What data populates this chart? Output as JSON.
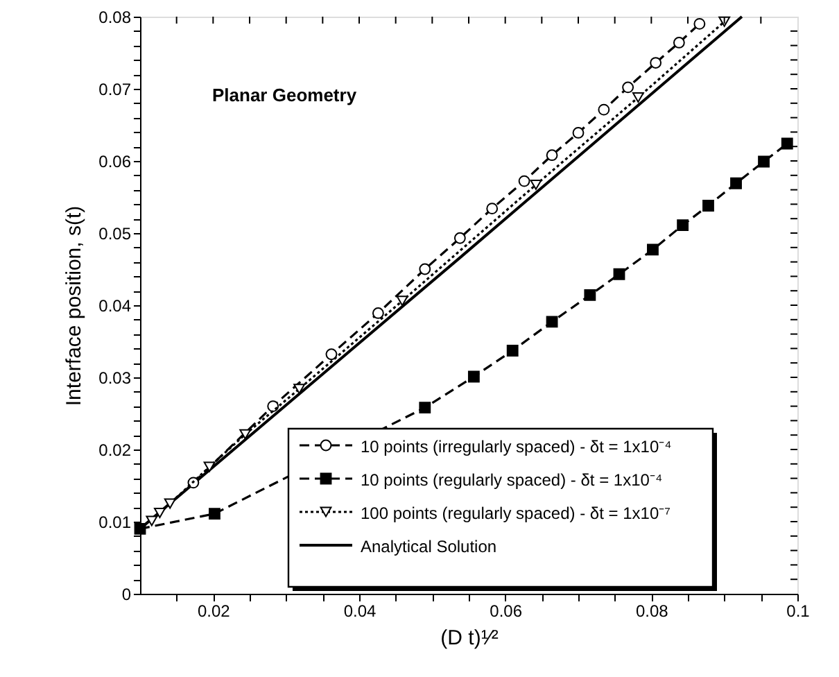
{
  "chart_data": {
    "type": "line",
    "xlabel": "(D t)¹⁄²",
    "ylabel": "Interface position,  s(t)",
    "annotations": [
      "Planar Geometry"
    ],
    "xlim": [
      0.01,
      0.1
    ],
    "ylim": [
      0,
      0.08
    ],
    "xticks": [
      {
        "value": 0.015,
        "label": null
      },
      0.02,
      {
        "value": 0.025,
        "label": null
      },
      {
        "value": 0.03,
        "label": null
      },
      {
        "value": 0.035,
        "label": null
      },
      0.04,
      {
        "value": 0.045,
        "label": null
      },
      {
        "value": 0.05,
        "label": null
      },
      {
        "value": 0.055,
        "label": null
      },
      0.06,
      {
        "value": 0.065,
        "label": null
      },
      {
        "value": 0.07,
        "label": null
      },
      {
        "value": 0.075,
        "label": null
      },
      0.08,
      {
        "value": 0.085,
        "label": null
      },
      {
        "value": 0.09,
        "label": null
      },
      {
        "value": 0.095,
        "label": null
      },
      0.1
    ],
    "yticks": [
      0,
      {
        "value": 0.002,
        "label": null
      },
      {
        "value": 0.004,
        "label": null
      },
      {
        "value": 0.006,
        "label": null
      },
      {
        "value": 0.008,
        "label": null
      },
      0.01,
      {
        "value": 0.012,
        "label": null
      },
      {
        "value": 0.014,
        "label": null
      },
      {
        "value": 0.016,
        "label": null
      },
      {
        "value": 0.018,
        "label": null
      },
      0.02,
      {
        "value": 0.022,
        "label": null
      },
      {
        "value": 0.024,
        "label": null
      },
      {
        "value": 0.026,
        "label": null
      },
      {
        "value": 0.028,
        "label": null
      },
      0.03,
      {
        "value": 0.032,
        "label": null
      },
      {
        "value": 0.034,
        "label": null
      },
      {
        "value": 0.036,
        "label": null
      },
      {
        "value": 0.038,
        "label": null
      },
      0.04,
      {
        "value": 0.042,
        "label": null
      },
      {
        "value": 0.044,
        "label": null
      },
      {
        "value": 0.046,
        "label": null
      },
      {
        "value": 0.048,
        "label": null
      },
      0.05,
      {
        "value": 0.052,
        "label": null
      },
      {
        "value": 0.054,
        "label": null
      },
      {
        "value": 0.056,
        "label": null
      },
      {
        "value": 0.058,
        "label": null
      },
      0.06,
      {
        "value": 0.062,
        "label": null
      },
      {
        "value": 0.064,
        "label": null
      },
      {
        "value": 0.066,
        "label": null
      },
      {
        "value": 0.068,
        "label": null
      },
      0.07,
      {
        "value": 0.072,
        "label": null
      },
      {
        "value": 0.074,
        "label": null
      },
      {
        "value": 0.076,
        "label": null
      },
      {
        "value": 0.078,
        "label": null
      },
      0.08
    ],
    "grid": false,
    "legend": "bottom right",
    "series": [
      {
        "name": "10 points (irregularly spaced) - δt = 1x10⁻⁴",
        "color": "#000000",
        "marker": "circle",
        "line_style": "dashed",
        "x": [
          0.0173,
          0.0282,
          0.0362,
          0.0426,
          0.049,
          0.0538,
          0.0582,
          0.0626,
          0.0664,
          0.07,
          0.0735,
          0.0768,
          0.0806,
          0.0838,
          0.0866
        ],
        "values": [
          0.0154,
          0.026,
          0.0332,
          0.0389,
          0.045,
          0.0493,
          0.0534,
          0.0572,
          0.0608,
          0.0639,
          0.0671,
          0.0702,
          0.0736,
          0.0764,
          0.079
        ]
      },
      {
        "name": "10 points (regularly spaced) - δt = 1x10⁻⁴",
        "color": "#000000",
        "marker": "square",
        "line_style": "dashed",
        "x": [
          0.01,
          0.0202,
          0.049,
          0.0557,
          0.061,
          0.0664,
          0.0716,
          0.0756,
          0.0802,
          0.0843,
          0.0878,
          0.0916,
          0.0954,
          0.0986
        ],
        "values": [
          0.009,
          0.0111,
          0.0258,
          0.0301,
          0.0337,
          0.0377,
          0.0414,
          0.0443,
          0.0477,
          0.0511,
          0.0538,
          0.0569,
          0.0599,
          0.0624
        ]
      },
      {
        "name": "100 points (regularly spaced) - δt = 1x10⁻⁷",
        "color": "#000000",
        "marker": "triangle",
        "line_style": "dotted",
        "x": [
          0.0116,
          0.0127,
          0.0141,
          0.0195,
          0.0244,
          0.0318,
          0.0459,
          0.0642,
          0.0782,
          0.09
        ],
        "values": [
          0.0101,
          0.0112,
          0.0125,
          0.0176,
          0.0221,
          0.0284,
          0.0406,
          0.0567,
          0.0688,
          0.0793
        ]
      },
      {
        "name": "Analytical Solution",
        "color": "#000000",
        "marker": "none",
        "line_style": "solid",
        "x": [
          0.01,
          0.0537,
          0.0924
        ],
        "values": [
          0.009,
          0.0465,
          0.08
        ]
      }
    ]
  }
}
